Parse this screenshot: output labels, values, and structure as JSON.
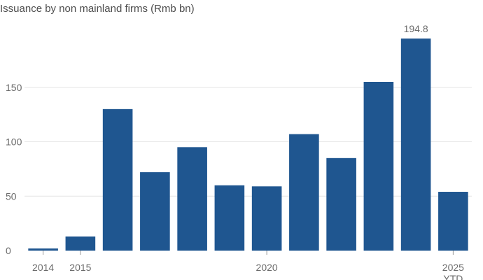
{
  "chart_data": {
    "type": "bar",
    "title": "Issuance by non mainland firms (Rmb bn)",
    "xlabel": "",
    "ylabel": "",
    "categories": [
      "2014",
      "2015",
      "2016",
      "2017",
      "2018",
      "2019",
      "2020",
      "2021",
      "2022",
      "2023",
      "2024",
      "2025 YTD"
    ],
    "x_tick_labels": [
      {
        "category": "2014",
        "text": "2014"
      },
      {
        "category": "2015",
        "text": "2015"
      },
      {
        "category": "2020",
        "text": "2020"
      },
      {
        "category": "2025 YTD",
        "text": "2025",
        "text2": "YTD"
      }
    ],
    "values": [
      2,
      13,
      130,
      72,
      95,
      60,
      59,
      107,
      85,
      155,
      194.8,
      54
    ],
    "data_labels": [
      {
        "category": "2024",
        "text": "194.8"
      }
    ],
    "ylim": [
      0,
      200
    ],
    "yticks": [
      0,
      50,
      100,
      150
    ],
    "grid": true,
    "bar_color": "#1f5690",
    "grid_color": "#e6e6e6",
    "text_color": "#6b6b6b"
  }
}
